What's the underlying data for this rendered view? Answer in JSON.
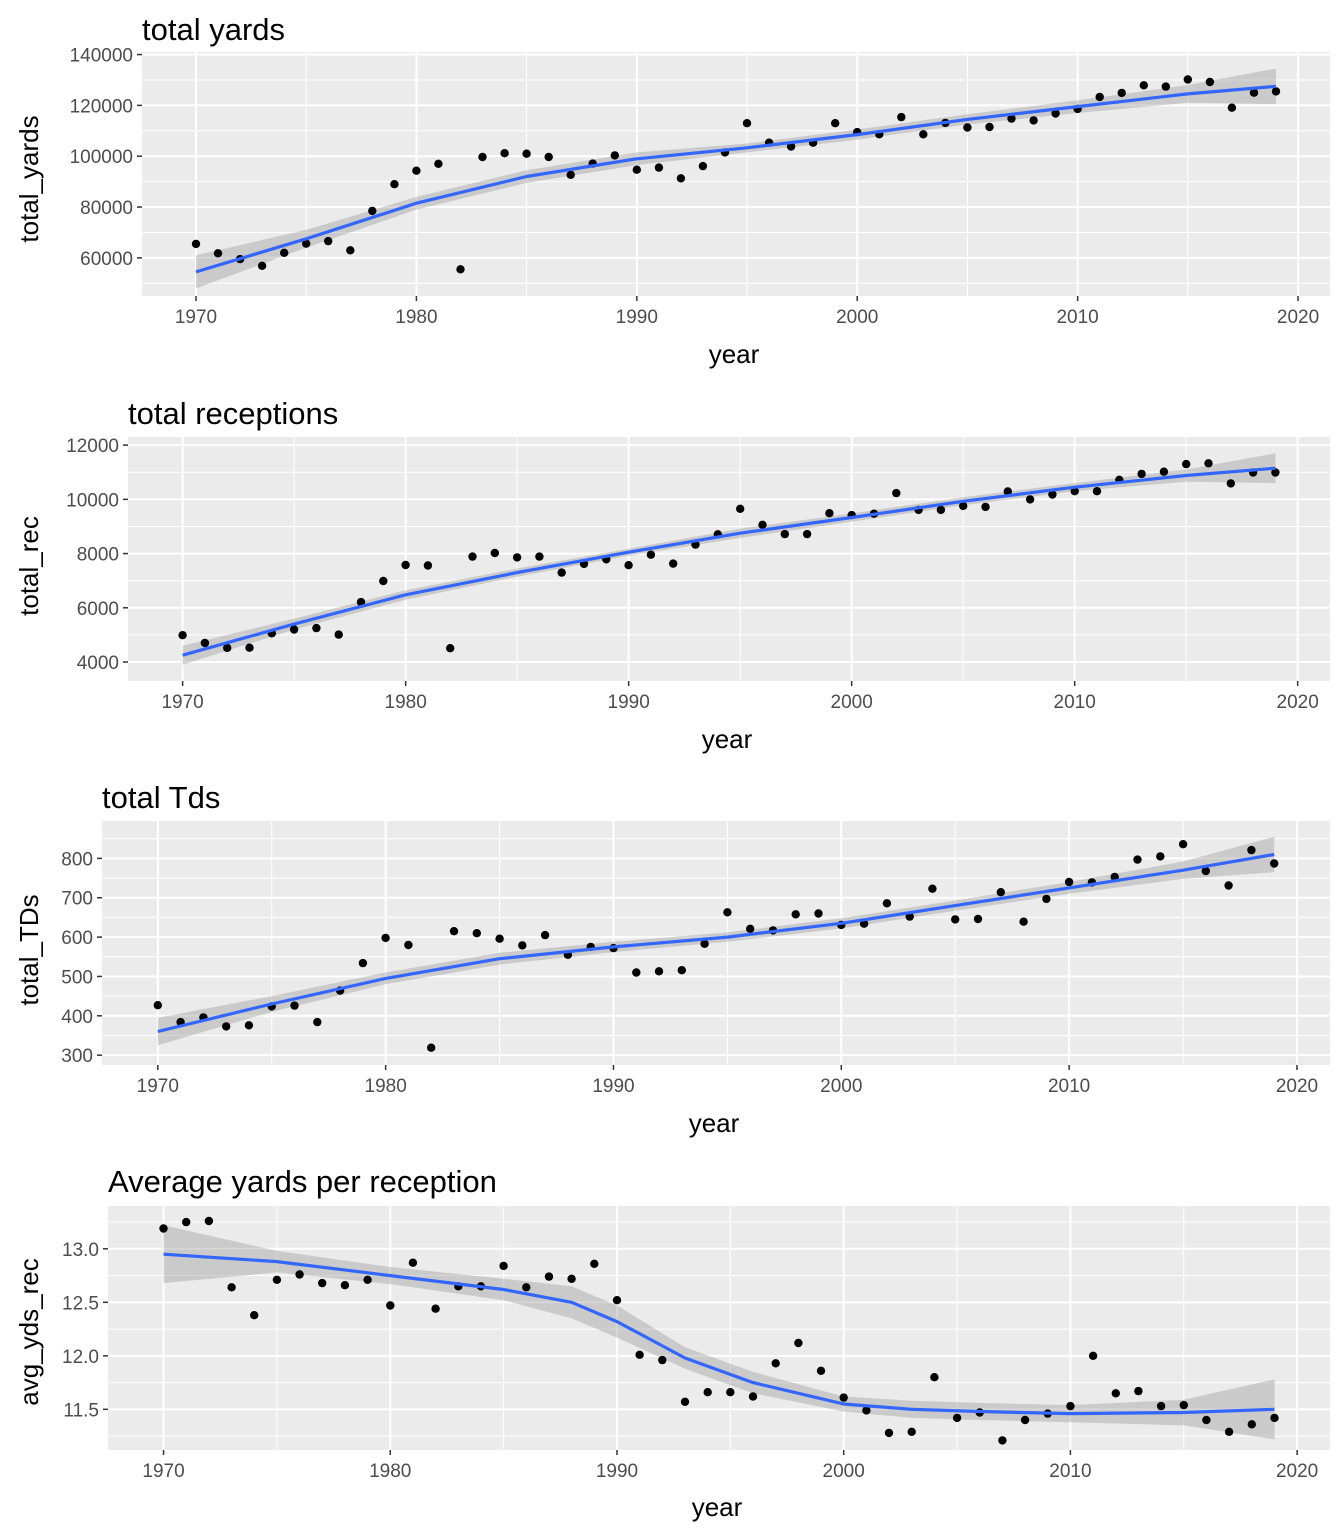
{
  "chart_data": [
    {
      "type": "scatter",
      "title": "total yards",
      "xlabel": "year",
      "ylabel": "total_yards",
      "xlim": [
        1967.55,
        2021.45
      ],
      "ylim": [
        45000,
        141000
      ],
      "xticks": [
        1970,
        1980,
        1990,
        2000,
        2010,
        2020
      ],
      "yticks": [
        60000,
        80000,
        100000,
        120000,
        140000
      ],
      "grid": true,
      "series": [
        {
          "x": [
            1970,
            1971,
            1972,
            1973,
            1974,
            1975,
            1976,
            1977,
            1978,
            1979,
            1980,
            1981,
            1982,
            1983,
            1984,
            1985,
            1986,
            1987,
            1988,
            1989,
            1990,
            1991,
            1992,
            1993,
            1994,
            1995,
            1996,
            1997,
            1998,
            1999,
            2000,
            2001,
            2002,
            2003,
            2004,
            2005,
            2006,
            2007,
            2008,
            2009,
            2010,
            2011,
            2012,
            2013,
            2014,
            2015,
            2016,
            2017,
            2018,
            2019
          ],
          "y": [
            65500,
            61800,
            59500,
            56900,
            62000,
            65600,
            66600,
            63000,
            78500,
            89000,
            94300,
            97000,
            55500,
            99700,
            101200,
            101000,
            99700,
            92700,
            97100,
            100300,
            94700,
            95500,
            91300,
            96100,
            101500,
            113000,
            105300,
            103800,
            105300,
            113000,
            109500,
            108600,
            115400,
            108600,
            113100,
            111300,
            111500,
            114800,
            114100,
            116800,
            118600,
            123300,
            124900,
            127900,
            127400,
            130200,
            129200,
            119100,
            125000,
            125500
          ]
        }
      ],
      "trend": {
        "x": [
          1970,
          1975,
          1980,
          1985,
          1990,
          1995,
          2000,
          2005,
          2010,
          2015,
          2019
        ],
        "y": [
          54500,
          67500,
          81500,
          92000,
          99000,
          103300,
          108500,
          114500,
          119500,
          124500,
          127500
        ],
        "band_low": [
          48000,
          64000,
          79000,
          89500,
          96500,
          101500,
          106500,
          112500,
          117000,
          121000,
          120500
        ],
        "band_high": [
          61000,
          71000,
          84000,
          94500,
          101500,
          105000,
          110500,
          116500,
          122000,
          128000,
          134500
        ]
      }
    },
    {
      "type": "scatter",
      "title": "total receptions",
      "xlabel": "year",
      "ylabel": "total_rec",
      "xlim": [
        1967.55,
        2021.45
      ],
      "ylim": [
        3300,
        12300
      ],
      "xticks": [
        1970,
        1980,
        1990,
        2000,
        2010,
        2020
      ],
      "yticks": [
        4000,
        6000,
        8000,
        10000,
        12000
      ],
      "grid": true,
      "series": [
        {
          "x": [
            1970,
            1971,
            1972,
            1973,
            1974,
            1975,
            1976,
            1977,
            1978,
            1979,
            1980,
            1981,
            1982,
            1983,
            1984,
            1985,
            1986,
            1987,
            1988,
            1989,
            1990,
            1991,
            1992,
            1993,
            1994,
            1995,
            1996,
            1997,
            1998,
            1999,
            2000,
            2001,
            2002,
            2003,
            2004,
            2005,
            2006,
            2007,
            2008,
            2009,
            2010,
            2011,
            2012,
            2013,
            2014,
            2015,
            2016,
            2017,
            2018,
            2019
          ],
          "y": [
            4990,
            4700,
            4520,
            4530,
            5060,
            5200,
            5250,
            5010,
            6210,
            6990,
            7580,
            7560,
            4510,
            7890,
            8020,
            7860,
            7890,
            7300,
            7620,
            7790,
            7570,
            7960,
            7630,
            8330,
            8710,
            9650,
            9060,
            8720,
            8720,
            9490,
            9420,
            9470,
            10230,
            9610,
            9610,
            9760,
            9720,
            10290,
            10000,
            10180,
            10300,
            10300,
            10720,
            10940,
            11020,
            11300,
            11330,
            10590,
            10990,
            10990
          ]
        }
      ],
      "trend": {
        "x": [
          1970,
          1975,
          1980,
          1985,
          1990,
          1995,
          2000,
          2005,
          2010,
          2015,
          2019
        ],
        "y": [
          4250,
          5400,
          6480,
          7300,
          8050,
          8750,
          9330,
          9930,
          10450,
          10880,
          11150
        ],
        "band_low": [
          3900,
          5200,
          6300,
          7150,
          7920,
          8580,
          9180,
          9780,
          10300,
          10650,
          10600
        ],
        "band_high": [
          4600,
          5600,
          6650,
          7450,
          8180,
          8920,
          9480,
          10080,
          10600,
          11100,
          11700
        ]
      }
    },
    {
      "type": "scatter",
      "title": "total Tds",
      "xlabel": "year",
      "ylabel": "total_TDs",
      "xlim": [
        1967.55,
        2021.45
      ],
      "ylim": [
        275,
        895
      ],
      "xticks": [
        1970,
        1980,
        1990,
        2000,
        2010,
        2020
      ],
      "yticks": [
        300,
        400,
        500,
        600,
        700,
        800
      ],
      "grid": true,
      "series": [
        {
          "x": [
            1970,
            1971,
            1972,
            1973,
            1974,
            1975,
            1976,
            1977,
            1978,
            1979,
            1980,
            1981,
            1982,
            1983,
            1984,
            1985,
            1986,
            1987,
            1988,
            1989,
            1990,
            1991,
            1992,
            1993,
            1994,
            1995,
            1996,
            1997,
            1998,
            1999,
            2000,
            2001,
            2002,
            2003,
            2004,
            2005,
            2006,
            2007,
            2008,
            2009,
            2010,
            2011,
            2012,
            2013,
            2014,
            2015,
            2016,
            2017,
            2018,
            2019
          ],
          "y": [
            427,
            384,
            396,
            373,
            376,
            424,
            426,
            384,
            464,
            534,
            598,
            580,
            319,
            615,
            610,
            596,
            579,
            605,
            555,
            575,
            572,
            510,
            513,
            516,
            583,
            663,
            621,
            617,
            658,
            660,
            631,
            634,
            686,
            652,
            723,
            645,
            646,
            714,
            639,
            697,
            740,
            739,
            753,
            797,
            805,
            836,
            768,
            731,
            821,
            787
          ]
        }
      ],
      "trend": {
        "x": [
          1970,
          1975,
          1980,
          1985,
          1990,
          1995,
          2000,
          2005,
          2010,
          2015,
          2019
        ],
        "y": [
          360,
          430,
          495,
          545,
          575,
          600,
          635,
          680,
          725,
          770,
          810
        ],
        "band_low": [
          325,
          410,
          480,
          530,
          562,
          588,
          622,
          667,
          710,
          748,
          765
        ],
        "band_high": [
          395,
          450,
          510,
          560,
          588,
          612,
          648,
          693,
          740,
          792,
          855
        ]
      }
    },
    {
      "type": "scatter",
      "title": "Average yards per reception",
      "xlabel": "year",
      "ylabel": "avg_yds_rec",
      "xlim": [
        1967.55,
        2021.45
      ],
      "ylim": [
        11.12,
        13.4
      ],
      "xticks": [
        1970,
        1980,
        1990,
        2000,
        2010,
        2020
      ],
      "yticks": [
        11.5,
        12.0,
        12.5,
        13.0
      ],
      "ytick_labels": [
        "11.5",
        "12.0",
        "12.5",
        "13.0"
      ],
      "grid": true,
      "series": [
        {
          "x": [
            1970,
            1971,
            1972,
            1973,
            1974,
            1975,
            1976,
            1977,
            1978,
            1979,
            1980,
            1981,
            1982,
            1983,
            1984,
            1985,
            1986,
            1987,
            1988,
            1989,
            1990,
            1991,
            1992,
            1993,
            1994,
            1995,
            1996,
            1997,
            1998,
            1999,
            2000,
            2001,
            2002,
            2003,
            2004,
            2005,
            2006,
            2007,
            2008,
            2009,
            2010,
            2011,
            2012,
            2013,
            2014,
            2015,
            2016,
            2017,
            2018,
            2019
          ],
          "y": [
            13.19,
            13.25,
            13.26,
            12.64,
            12.38,
            12.71,
            12.76,
            12.68,
            12.66,
            12.71,
            12.47,
            12.87,
            12.44,
            12.65,
            12.65,
            12.84,
            12.64,
            12.74,
            12.72,
            12.86,
            12.52,
            12.01,
            11.96,
            11.57,
            11.66,
            11.66,
            11.62,
            11.93,
            12.12,
            11.86,
            11.61,
            11.49,
            11.28,
            11.29,
            11.8,
            11.42,
            11.47,
            11.21,
            11.4,
            11.46,
            11.53,
            12.0,
            11.65,
            11.67,
            11.53,
            11.54,
            11.4,
            11.29,
            11.36,
            11.42
          ]
        }
      ],
      "trend": {
        "x": [
          1970,
          1975,
          1980,
          1985,
          1988,
          1990,
          1993,
          1996,
          2000,
          2003,
          2006,
          2010,
          2015,
          2019
        ],
        "y": [
          12.95,
          12.88,
          12.75,
          12.62,
          12.5,
          12.32,
          11.98,
          11.75,
          11.55,
          11.5,
          11.48,
          11.46,
          11.47,
          11.5
        ],
        "band_low": [
          12.68,
          12.78,
          12.67,
          12.52,
          12.35,
          12.17,
          11.88,
          11.65,
          11.48,
          11.42,
          11.4,
          11.38,
          11.35,
          11.22
        ],
        "band_high": [
          13.22,
          12.98,
          12.83,
          12.72,
          12.65,
          12.47,
          12.08,
          11.85,
          11.62,
          11.58,
          11.56,
          11.54,
          11.59,
          11.78
        ]
      }
    }
  ],
  "colors": {
    "panel_background": "#ebebeb",
    "grid": "#ffffff",
    "points": "#000000",
    "trend_line": "#3366ff",
    "confidence_band": "#999999"
  }
}
